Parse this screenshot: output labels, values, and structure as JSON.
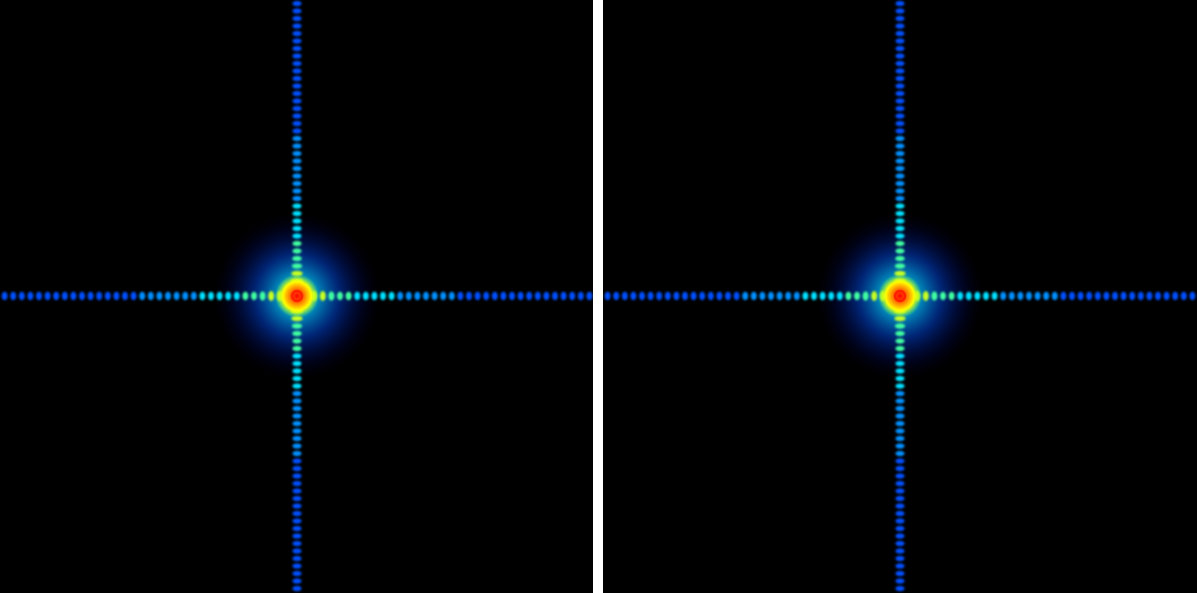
{
  "image": {
    "panels": [
      {
        "id": "left",
        "pattern": "cross-diffraction",
        "colormap": "jet"
      },
      {
        "id": "right",
        "pattern": "cross-diffraction",
        "colormap": "jet"
      }
    ],
    "background_color": "#000000",
    "divider_color": "#ffffff",
    "colormap_stops": [
      "#00007f",
      "#0000ff",
      "#007fff",
      "#00ffff",
      "#7fff7f",
      "#ffff00",
      "#ff7f00",
      "#ff0000"
    ]
  }
}
